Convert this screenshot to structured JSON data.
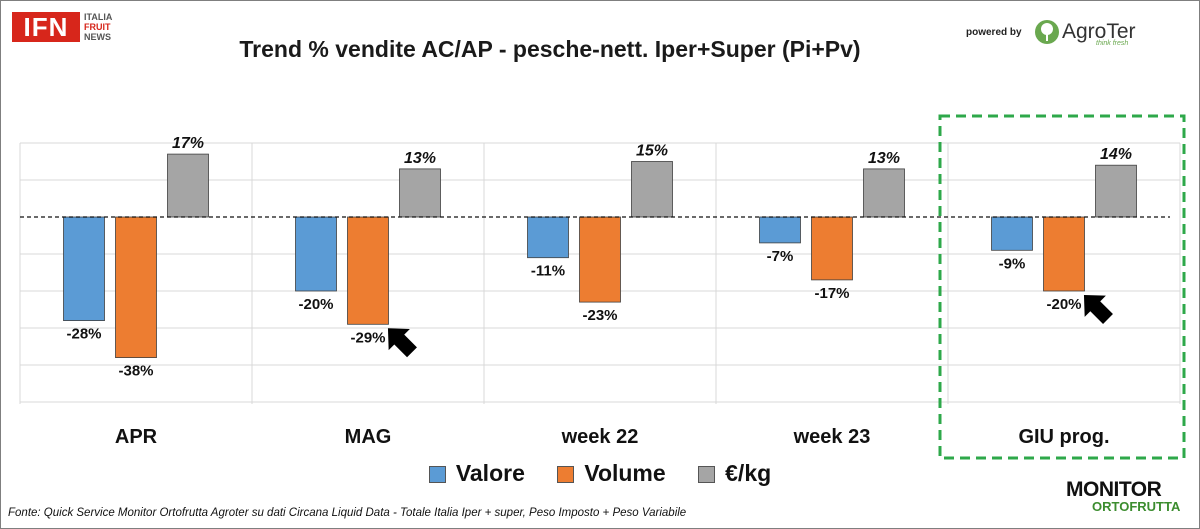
{
  "header": {
    "logo_mark": "IFN",
    "logo_words": [
      "ITALIA",
      "FRUIT",
      "NEWS"
    ],
    "powered_by": "powered by",
    "partner_name": "AgroTer",
    "partner_tagline": "think fresh"
  },
  "chart_data": {
    "type": "bar",
    "title": "Trend % vendite AC/AP - pesche-nett.  Iper+Super (Pi+Pv)",
    "categories": [
      "APR",
      "MAG",
      "week 22",
      "week 23",
      "GIU prog."
    ],
    "series": [
      {
        "name": "Valore",
        "color": "#5b9bd5",
        "values": [
          -28,
          -20,
          -11,
          -7,
          -9
        ],
        "labels": [
          "-28%",
          "-20%",
          "-11%",
          "-7%",
          "-9%"
        ]
      },
      {
        "name": "Volume",
        "color": "#ed7d31",
        "values": [
          -38,
          -29,
          -23,
          -17,
          -20
        ],
        "labels": [
          "-38%",
          "-29%",
          "-23%",
          "-17%",
          "-20%"
        ]
      },
      {
        "name": "€/kg",
        "color": "#a5a5a5",
        "values": [
          17,
          13,
          15,
          13,
          14
        ],
        "labels": [
          "17%",
          "13%",
          "15%",
          "13%",
          "14%"
        ]
      }
    ],
    "ylim": [
      -50,
      20
    ],
    "highlighted_category": "GIU prog.",
    "arrows_at": [
      "MAG",
      "GIU prog."
    ],
    "legend_position": "bottom"
  },
  "footer": {
    "source": "Fonte: Quick Service Monitor Ortofrutta Agroter su dati Circana Liquid Data - Totale Italia Iper + super, Peso Imposto + Peso Variabile",
    "logo_top": "MONITOR",
    "logo_bottom": "ORTOFRUTTA"
  }
}
